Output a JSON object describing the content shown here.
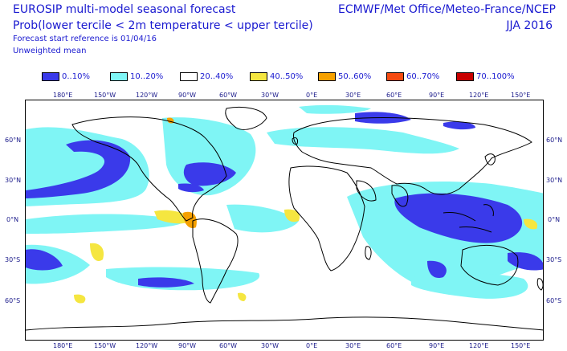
{
  "header": {
    "title_line1": "EUROSIP multi-model seasonal forecast",
    "title_line2": "Prob(lower tercile < 2m temperature < upper tercile)",
    "start_ref": "Forecast start reference is 01/04/16",
    "mean_type": "Unweighted mean",
    "centres": "ECMWF/Met Office/Meteo-France/NCEP",
    "season": "JJA 2016"
  },
  "legend": [
    {
      "label": "0..10%",
      "color": "#3a3aea"
    },
    {
      "label": "10..20%",
      "color": "#7ff5f5"
    },
    {
      "label": "20..40%",
      "color": "#ffffff"
    },
    {
      "label": "40..50%",
      "color": "#f5e640"
    },
    {
      "label": "50..60%",
      "color": "#f5a000"
    },
    {
      "label": "60..70%",
      "color": "#f54a10"
    },
    {
      "label": "70..100%",
      "color": "#c80000"
    }
  ],
  "axes": {
    "lon_labels": [
      "180°E",
      "150°W",
      "120°W",
      "90°W",
      "60°W",
      "30°W",
      "0°E",
      "30°E",
      "60°E",
      "90°E",
      "120°E",
      "150°E"
    ],
    "lat_labels_left": [
      "60°N",
      "30°N",
      "0°N",
      "30°S",
      "60°S"
    ],
    "lat_labels_right": [
      "60°N",
      "30°N",
      "0°N",
      "30°S",
      "60°S"
    ]
  }
}
